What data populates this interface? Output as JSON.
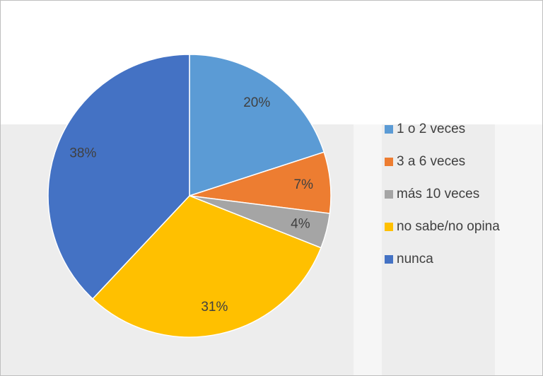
{
  "chart_data": {
    "type": "pie",
    "categories": [
      "1 o 2 veces",
      "3 a 6 veces",
      "más 10 veces",
      "no sabe/no opina",
      "nunca"
    ],
    "values": [
      20,
      7,
      4,
      31,
      38
    ],
    "value_labels": [
      "20%",
      "7%",
      "4%",
      "31%",
      "38%"
    ],
    "colors": [
      "#5b9bd5",
      "#ed7d31",
      "#a5a5a5",
      "#ffc000",
      "#4472c4"
    ],
    "legend": "right"
  }
}
